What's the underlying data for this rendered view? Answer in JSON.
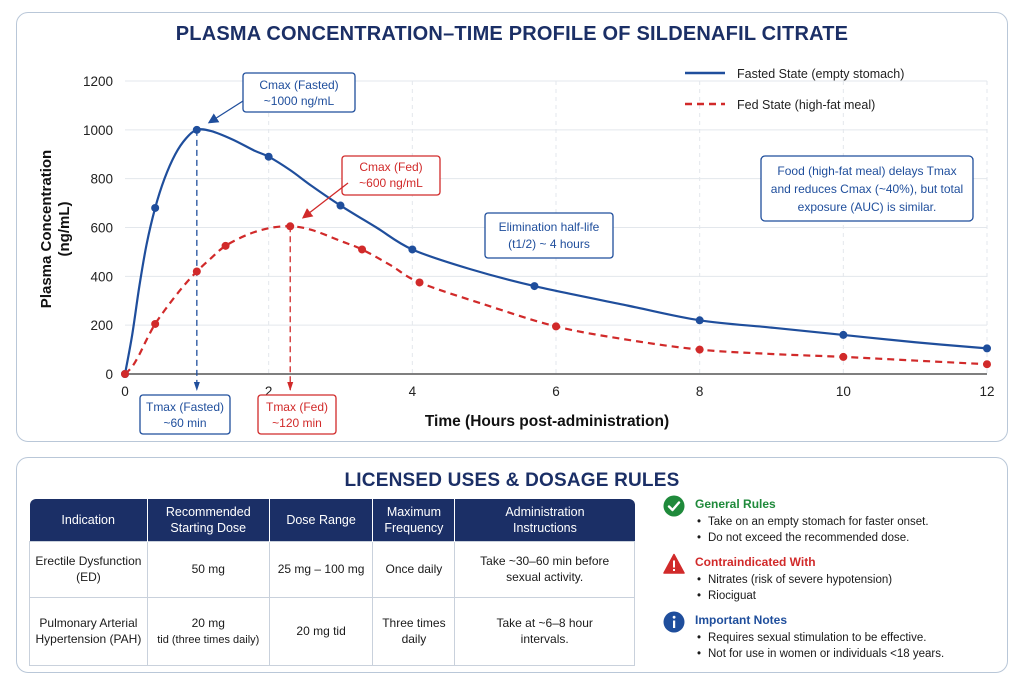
{
  "chart_data": {
    "type": "line",
    "title": "PLASMA CONCENTRATION–TIME PROFILE OF SILDENAFIL CITRATE",
    "xlabel": "Time (Hours post-administration)",
    "ylabel": "Plasma Concentration (ng/mL)",
    "xlim": [
      0,
      12
    ],
    "ylim": [
      0,
      1200
    ],
    "xticks": [
      0,
      2,
      4,
      6,
      8,
      10,
      12
    ],
    "yticks": [
      0,
      200,
      400,
      600,
      800,
      1000,
      1200
    ],
    "grid": true,
    "legend_position": "top-right",
    "series": [
      {
        "name": "Fasted State (empty stomach)",
        "color": "#1f4e9c",
        "style": "solid",
        "x": [
          0,
          0.42,
          1,
          2,
          3,
          4,
          5.7,
          8,
          10,
          12
        ],
        "y": [
          0,
          680,
          1000,
          890,
          690,
          510,
          360,
          220,
          160,
          105
        ],
        "curve_x": [
          0,
          0.1,
          0.2,
          0.3,
          0.42,
          0.55,
          0.7,
          0.85,
          1,
          1.2,
          1.5,
          1.8,
          2,
          2.3,
          2.6,
          3,
          3.5,
          4,
          4.8,
          5.7,
          7,
          8,
          9,
          10,
          11,
          12
        ],
        "curve_y": [
          0,
          160,
          360,
          530,
          680,
          800,
          900,
          965,
          1000,
          995,
          960,
          915,
          890,
          835,
          770,
          690,
          600,
          510,
          430,
          360,
          280,
          220,
          190,
          160,
          130,
          105
        ]
      },
      {
        "name": "Fed State (high-fat meal)",
        "color": "#d12a2a",
        "style": "dashed",
        "x": [
          0,
          0.42,
          1,
          1.4,
          2.3,
          3.3,
          4.1,
          6,
          8,
          10,
          12
        ],
        "y": [
          0,
          205,
          420,
          525,
          605,
          510,
          375,
          195,
          100,
          70,
          40
        ],
        "curve_x": [
          0,
          0.1,
          0.2,
          0.3,
          0.42,
          0.6,
          0.8,
          1,
          1.2,
          1.4,
          1.7,
          2,
          2.3,
          2.6,
          3,
          3.3,
          3.7,
          4.1,
          5,
          6,
          7,
          8,
          9,
          10,
          11,
          12
        ],
        "curve_y": [
          0,
          30,
          80,
          140,
          205,
          280,
          355,
          420,
          475,
          525,
          570,
          597,
          605,
          590,
          545,
          510,
          445,
          375,
          285,
          195,
          140,
          100,
          82,
          70,
          55,
          40
        ]
      }
    ],
    "annotations": {
      "cmax_fasted": {
        "title": "Cmax (Fasted)",
        "value": "~1000 ng/mL",
        "x": 1,
        "y": 1000
      },
      "cmax_fed": {
        "title": "Cmax (Fed)",
        "value": "~600 ng/mL",
        "x": 2.3,
        "y": 605
      },
      "tmax_fasted": {
        "title": "Tmax (Fasted)",
        "value": "~60 min",
        "x": 1
      },
      "tmax_fed": {
        "title": "Tmax (Fed)",
        "value": "~120 min",
        "x": 2.3
      },
      "half_life": {
        "line1": "Elimination half-life",
        "line2": "(t1/2) ~ 4 hours"
      },
      "food_note": {
        "line1": "Food (high-fat meal) delays Tmax",
        "line2": "and reduces Cmax (~40%), but total",
        "line3": "exposure (AUC) is similar."
      }
    }
  },
  "dosage": {
    "title": "LICENSED USES & DOSAGE RULES",
    "columns": [
      [
        "Indication"
      ],
      [
        "Recommended",
        "Starting Dose"
      ],
      [
        "Dose Range"
      ],
      [
        "Maximum",
        "Frequency"
      ],
      [
        "Administration",
        "Instructions"
      ]
    ],
    "rows": [
      {
        "indication": [
          "Erectile Dysfunction",
          "(ED)"
        ],
        "starting_dose": [
          "50 mg"
        ],
        "range": "25 mg – 100 mg",
        "frequency": [
          "Once daily"
        ],
        "instructions": [
          "Take ~30–60 min before",
          "sexual activity."
        ]
      },
      {
        "indication": [
          "Pulmonary Arterial",
          "Hypertension (PAH)"
        ],
        "starting_dose": [
          "20 mg",
          "tid (three times daily)"
        ],
        "range": "20 mg tid",
        "frequency": [
          "Three times",
          "daily"
        ],
        "instructions": [
          "Take at ~6–8 hour",
          "intervals."
        ]
      }
    ]
  },
  "rules": {
    "general": {
      "heading": "General Rules",
      "color": "#1f8a3b",
      "icon": "checkmark-icon",
      "items": [
        "Take on an empty stomach for faster onset.",
        "Do not exceed the recommended dose."
      ]
    },
    "contra": {
      "heading": "Contraindicated With",
      "color": "#d12a2a",
      "icon": "warning-icon",
      "items": [
        "Nitrates (risk of severe hypotension)",
        "Riociguat"
      ]
    },
    "notes": {
      "heading": "Important Notes",
      "color": "#1f4e9c",
      "icon": "info-icon",
      "items": [
        "Requires sexual stimulation to be effective.",
        "Not for use in women or individuals <18 years."
      ]
    }
  }
}
